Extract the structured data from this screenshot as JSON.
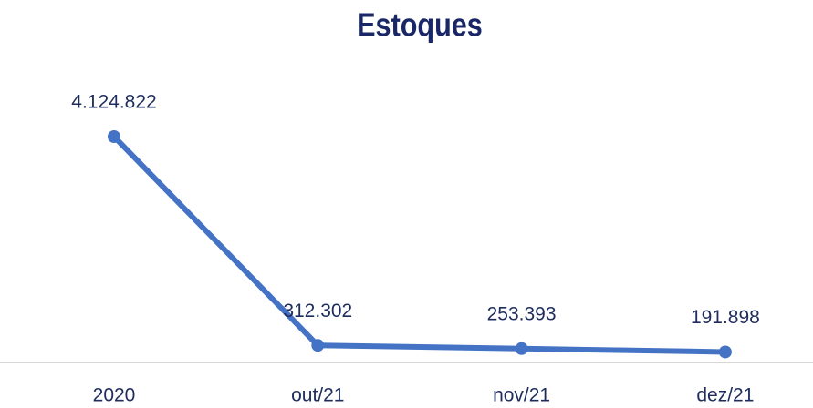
{
  "chart_data": {
    "type": "line",
    "title": "Estoques",
    "categories": [
      "2020",
      "out/21",
      "nov/21",
      "dez/21"
    ],
    "series": [
      {
        "color": "#4472c4",
        "values": [
          4124822,
          312302,
          253393,
          191898
        ],
        "value_labels": [
          "4.124.822",
          "312.302",
          "253.393",
          "191.898"
        ]
      }
    ]
  }
}
